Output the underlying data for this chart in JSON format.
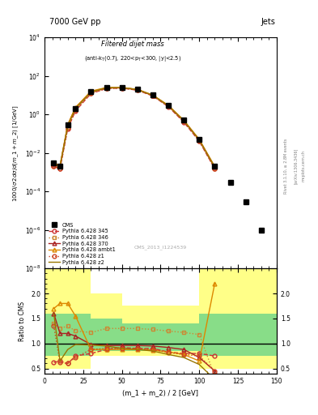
{
  "title_left": "7000 GeV pp",
  "title_right": "Jets",
  "watermark": "CMS_2013_I1224539",
  "ylabel_main": "1000/σ 2dσ/d(m_1 + m_2) [1/GeV]",
  "ylabel_ratio": "Ratio to CMS",
  "xlabel": "(m_1 + m_2) / 2 [GeV]",
  "xlim": [
    0,
    150
  ],
  "ylim_main": [
    1e-08,
    10000.0
  ],
  "ylim_ratio": [
    0.4,
    2.5
  ],
  "x_cms": [
    6,
    10,
    15,
    20,
    30,
    40,
    50,
    60,
    70,
    80,
    90,
    100,
    110,
    120,
    130,
    140
  ],
  "y_cms": [
    0.003,
    0.002,
    0.3,
    2.0,
    15.0,
    25.0,
    25.0,
    20.0,
    10.0,
    3.0,
    0.5,
    0.05,
    0.002,
    0.0003,
    3e-05,
    1e-06
  ],
  "x_345": [
    6,
    10,
    15,
    20,
    30,
    40,
    50,
    60,
    70,
    80,
    90,
    100,
    110
  ],
  "y_345": [
    0.002,
    0.0015,
    0.18,
    1.5,
    12.0,
    22.0,
    23.0,
    18.0,
    9.0,
    2.5,
    0.4,
    0.04,
    0.0015
  ],
  "ratio_345": [
    0.62,
    0.65,
    0.6,
    0.75,
    0.8,
    0.88,
    0.92,
    0.9,
    0.9,
    0.83,
    0.8,
    0.8,
    0.75
  ],
  "x_346": [
    6,
    10,
    15,
    20,
    30,
    40,
    50,
    60,
    70,
    80,
    90,
    100,
    110
  ],
  "y_346": [
    0.002,
    0.0018,
    0.22,
    1.8,
    13.0,
    23.0,
    24.0,
    19.0,
    9.5,
    2.7,
    0.45,
    0.045,
    0.0016
  ],
  "ratio_346": [
    1.4,
    1.3,
    1.35,
    1.25,
    1.22,
    1.3,
    1.3,
    1.3,
    1.28,
    1.25,
    1.22,
    1.18,
    0.35
  ],
  "x_370": [
    6,
    10,
    15,
    20,
    30,
    40,
    50,
    60,
    70,
    80,
    90,
    100,
    110
  ],
  "y_370": [
    0.0025,
    0.002,
    0.28,
    2.2,
    15.0,
    24.0,
    24.5,
    19.5,
    9.8,
    2.8,
    0.48,
    0.048,
    0.0018
  ],
  "ratio_370": [
    1.6,
    1.2,
    1.2,
    1.15,
    0.98,
    0.96,
    0.96,
    0.96,
    0.95,
    0.92,
    0.88,
    0.72,
    0.45
  ],
  "x_ambt1": [
    6,
    10,
    15,
    20,
    30,
    40,
    50,
    60,
    70,
    80,
    90,
    100,
    110
  ],
  "y_ambt1": [
    0.003,
    0.0022,
    0.3,
    2.3,
    16.0,
    25.0,
    25.0,
    20.0,
    10.0,
    3.0,
    0.5,
    0.05,
    0.002
  ],
  "ratio_ambt1": [
    1.7,
    1.8,
    1.8,
    1.55,
    0.88,
    0.88,
    0.88,
    0.88,
    0.87,
    0.83,
    0.78,
    0.65,
    2.2
  ],
  "x_z1": [
    6,
    10,
    15,
    20,
    30,
    40,
    50,
    60,
    70,
    80,
    90,
    100,
    110
  ],
  "y_z1": [
    0.002,
    0.0015,
    0.2,
    1.7,
    13.0,
    22.0,
    23.0,
    18.5,
    9.2,
    2.6,
    0.42,
    0.042,
    0.0015
  ],
  "ratio_z1": [
    1.35,
    0.62,
    0.6,
    0.72,
    0.88,
    0.9,
    0.9,
    0.9,
    0.88,
    0.82,
    0.78,
    0.75,
    0.45
  ],
  "x_z2": [
    6,
    10,
    15,
    20,
    30,
    40,
    50,
    60,
    70,
    80,
    90,
    100,
    110
  ],
  "y_z2": [
    0.0025,
    0.002,
    0.25,
    2.0,
    14.5,
    24.0,
    24.5,
    19.5,
    9.8,
    2.8,
    0.47,
    0.047,
    0.0018
  ],
  "ratio_z2": [
    1.6,
    0.65,
    0.88,
    0.98,
    0.97,
    0.95,
    0.9,
    0.88,
    0.85,
    0.78,
    0.72,
    0.58,
    0.28
  ],
  "color_345": "#cc3333",
  "color_346": "#cc8833",
  "color_370": "#aa2222",
  "color_ambt1": "#dd8800",
  "color_z1": "#cc4422",
  "color_z2": "#997700",
  "band_x": [
    0,
    10,
    20,
    30,
    40,
    50,
    60,
    70,
    80,
    90,
    100,
    110,
    120,
    130,
    140,
    150
  ],
  "band_yellow_lo": [
    0.5,
    0.5,
    0.5,
    0.75,
    0.75,
    0.75,
    0.75,
    0.75,
    0.75,
    0.75,
    0.5,
    0.5,
    0.5,
    0.5,
    0.5,
    0.5
  ],
  "band_yellow_hi": [
    2.5,
    2.5,
    2.5,
    2.0,
    2.0,
    1.75,
    1.75,
    1.75,
    1.75,
    1.75,
    2.5,
    2.5,
    2.5,
    2.5,
    2.5,
    2.5
  ],
  "band_green_lo": [
    0.75,
    0.75,
    0.75,
    0.85,
    0.85,
    0.85,
    0.85,
    0.85,
    0.85,
    0.85,
    0.75,
    0.75,
    0.75,
    0.75,
    0.75,
    0.75
  ],
  "band_green_hi": [
    1.6,
    1.6,
    1.6,
    1.5,
    1.5,
    1.4,
    1.4,
    1.4,
    1.4,
    1.4,
    1.6,
    1.6,
    1.6,
    1.6,
    1.6,
    1.6
  ]
}
